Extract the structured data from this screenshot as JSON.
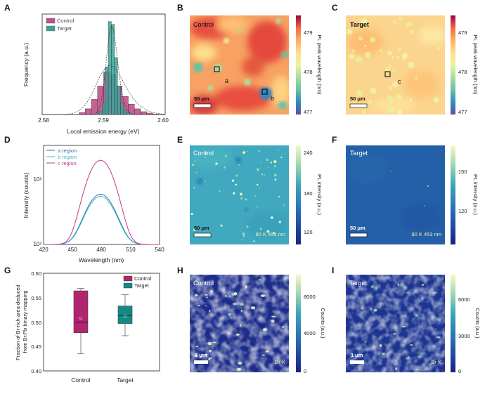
{
  "panel_letters": [
    "A",
    "B",
    "C",
    "D",
    "E",
    "F",
    "G",
    "H",
    "I"
  ],
  "chart_data": [
    {
      "panel": "A",
      "type": "bar",
      "xlabel": "Local emission energy (eV)",
      "ylabel": "Frequency (a.u.)",
      "xlim": [
        2.58,
        2.6
      ],
      "xticks": [
        "2.58",
        "2.59",
        "2.60"
      ],
      "legend": [
        "Control",
        "Target"
      ],
      "legend_position": "top-left",
      "series": [
        {
          "name": "Control",
          "color": "#c0508a",
          "x": [
            2.5865,
            2.5875,
            2.5885,
            2.5895,
            2.5905,
            2.5915,
            2.5925,
            2.5935,
            2.5945,
            2.5955,
            2.5965,
            2.5975,
            2.5985
          ],
          "values": [
            0.02,
            0.06,
            0.16,
            0.3,
            0.45,
            0.42,
            0.3,
            0.19,
            0.11,
            0.06,
            0.03,
            0.015,
            0.005
          ]
        },
        {
          "name": "Target",
          "color": "#3aa39a",
          "x": [
            2.5895,
            2.59,
            2.5905,
            2.591,
            2.5915,
            2.592,
            2.5925,
            2.593,
            2.5935,
            2.594
          ],
          "values": [
            0.03,
            0.12,
            0.5,
            0.98,
            0.95,
            0.6,
            0.3,
            0.12,
            0.05,
            0.02
          ]
        }
      ]
    },
    {
      "panel": "D",
      "type": "line",
      "xlabel": "Wavelength (nm)",
      "ylabel": "Intensity (counts)",
      "yscale": "log",
      "xlim": [
        420,
        540
      ],
      "xticks": [
        "420",
        "450",
        "480",
        "510",
        "540"
      ],
      "yticks": [
        "10²",
        "10³"
      ],
      "legend_position": "top-left",
      "series": [
        {
          "name": "a  region",
          "color": "#2f6fb3",
          "peak_x": 479,
          "peak_y": 650,
          "base_y": 100
        },
        {
          "name": "b  region",
          "color": "#3bbfc1",
          "peak_x": 479,
          "peak_y": 600,
          "base_y": 100
        },
        {
          "name": "c  region",
          "color": "#c2378a",
          "peak_x": 479,
          "peak_y": 2300,
          "base_y": 100
        }
      ]
    },
    {
      "panel": "G",
      "type": "box",
      "ylabel": "Fraction of Br-rich area deduced from Br:Pb binary mapping",
      "ylim": [
        0.4,
        0.6
      ],
      "yticks": [
        "0.40",
        "0.45",
        "0.50",
        "0.55",
        "0.60"
      ],
      "categories": [
        "Control",
        "Target"
      ],
      "legend_position": "top-right",
      "series": [
        {
          "name": "Control",
          "color": "#b0256d",
          "min": 0.435,
          "q1": 0.478,
          "median": 0.5,
          "mean": 0.508,
          "q3": 0.564,
          "max": 0.569
        },
        {
          "name": "Target",
          "color": "#138a84",
          "min": 0.472,
          "q1": 0.497,
          "median": 0.5135,
          "mean": 0.512,
          "q3": 0.533,
          "max": 0.556
        }
      ]
    }
  ],
  "maps": {
    "B": {
      "label": "Control",
      "scale": "50 μm",
      "cbar_label": "PL peak wavelength  (nm)",
      "cbar_ticks": [
        "479",
        "478",
        "477"
      ],
      "markers": [
        "a",
        "b"
      ]
    },
    "C": {
      "label": "Target",
      "scale": "50 μm",
      "cbar_label": "PL peak wavelength  (nm)",
      "cbar_ticks": [
        "479",
        "478",
        "477"
      ],
      "markers": [
        "c"
      ]
    },
    "E": {
      "label": "Control",
      "scale": "50 μm",
      "annotation": "80 K 453 nm",
      "cbar_label": "PL intensity (a.u.)",
      "cbar_ticks": [
        "240",
        "180",
        "120"
      ]
    },
    "F": {
      "label": "Target",
      "scale": "50 μm",
      "annotation": "80 K 453 nm",
      "cbar_label": "PL intensity (a.u.)",
      "cbar_ticks": [
        "150",
        "120"
      ]
    },
    "H": {
      "label": "Control",
      "scale": "1 μm",
      "annotation": "Br K",
      "cbar_label": "Counts (a.u.)",
      "cbar_ticks": [
        "8000",
        "4000",
        "0"
      ]
    },
    "I": {
      "label": "Target",
      "scale": "1 μm",
      "annotation": "Br K",
      "cbar_label": "Counts (a.u.)",
      "cbar_ticks": [
        "6000",
        "3000",
        "0"
      ]
    }
  },
  "colors": {
    "spectral": [
      "#5e4fa2",
      "#3288bd",
      "#66c2a5",
      "#abdda4",
      "#e6f598",
      "#fee08b",
      "#fdae61",
      "#f46d43",
      "#d53e4f",
      "#9e0142"
    ],
    "viridis_like": [
      "#1a237e",
      "#1f4ea3",
      "#2a7ab8",
      "#3aa5b8",
      "#79c8b4",
      "#c5e8b0",
      "#f5f9c8"
    ]
  }
}
